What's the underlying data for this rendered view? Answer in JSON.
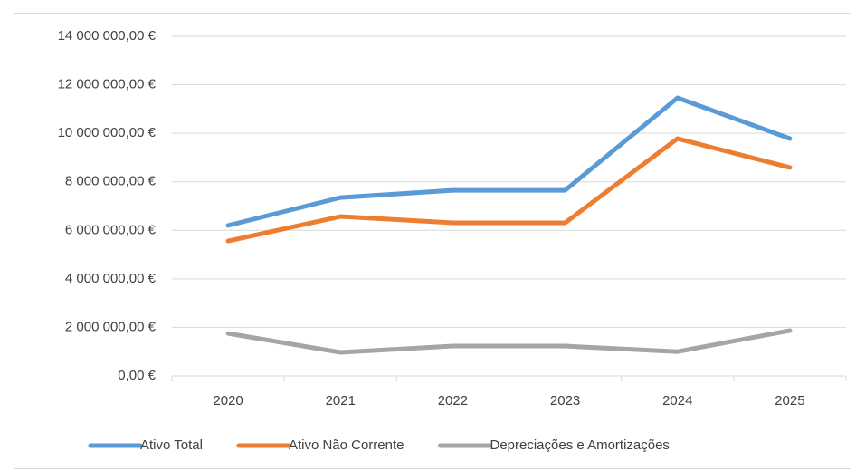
{
  "chart_data": {
    "type": "line",
    "categories": [
      "2020",
      "2021",
      "2022",
      "2023",
      "2024",
      "2025"
    ],
    "series": [
      {
        "name": "Ativo Total",
        "color": "#5b9bd5",
        "values": [
          6200000,
          7350000,
          7650000,
          7650000,
          11460000,
          9780000
        ]
      },
      {
        "name": "Ativo Não Corrente",
        "color": "#ed7d31",
        "values": [
          5560000,
          6570000,
          6310000,
          6310000,
          9780000,
          8590000
        ]
      },
      {
        "name": "Depreciações e Amortizações",
        "color": "#a5a5a5",
        "values": [
          1750000,
          970000,
          1230000,
          1230000,
          1000000,
          1870000
        ]
      }
    ],
    "ylim": [
      0,
      14000000
    ],
    "yticks": [
      {
        "value": 0,
        "label": "0,00 €"
      },
      {
        "value": 2000000,
        "label": "2 000 000,00 €"
      },
      {
        "value": 4000000,
        "label": "4 000 000,00 €"
      },
      {
        "value": 6000000,
        "label": "6 000 000,00 €"
      },
      {
        "value": 8000000,
        "label": "8 000 000,00 €"
      },
      {
        "value": 10000000,
        "label": "10 000 000,00 €"
      },
      {
        "value": 12000000,
        "label": "12 000 000,00 €"
      },
      {
        "value": 14000000,
        "label": "14 000 000,00 €"
      }
    ],
    "grid": true,
    "legend": "bottom"
  }
}
